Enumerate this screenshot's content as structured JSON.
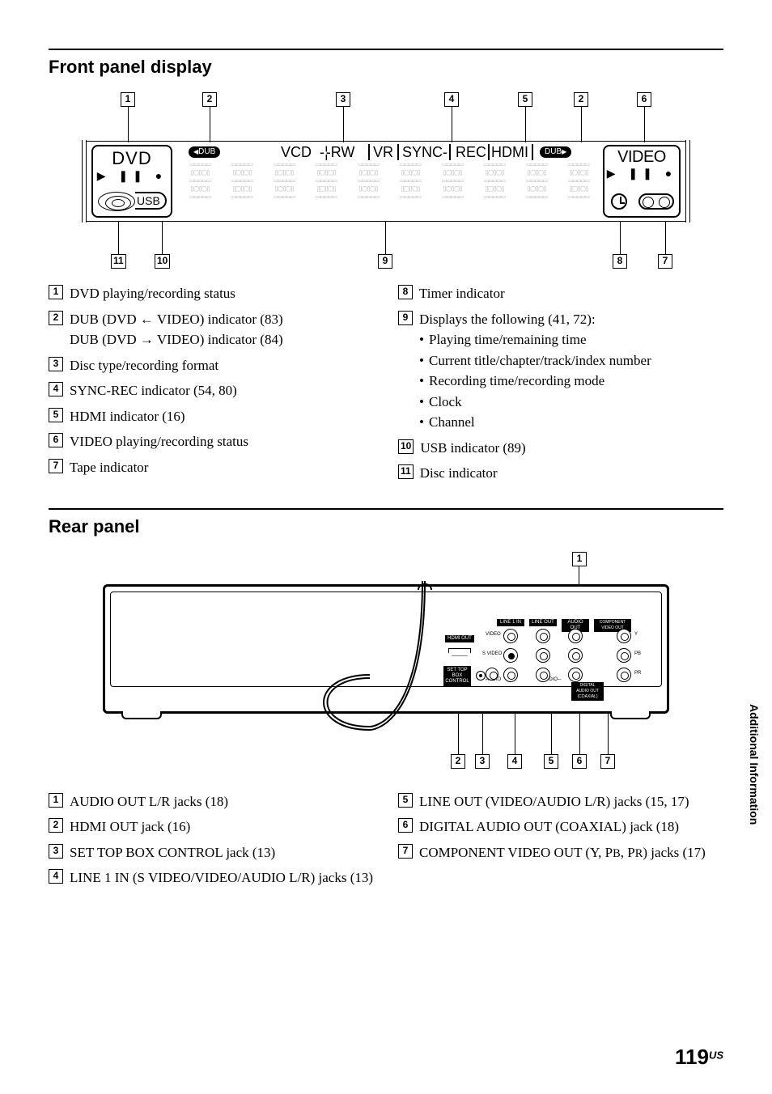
{
  "section1": {
    "title": "Front panel display"
  },
  "section2": {
    "title": "Rear panel"
  },
  "sideTab": "Additional Information",
  "pageNumber": "119",
  "pageSuffix": "US",
  "frontDisplay": {
    "leftBox": {
      "top": "DVD",
      "usb": "USB"
    },
    "topRow": {
      "vcd": "VCD",
      "rw": "RW",
      "vr": "VR",
      "sync": "SYNC-",
      "rec": "REC",
      "hdmi": "HDMI"
    },
    "dub": "DUB",
    "rightBox": {
      "top": "VIDEO"
    }
  },
  "frontCallouts": {
    "top": [
      "1",
      "2",
      "3",
      "4",
      "5",
      "2",
      "6"
    ],
    "bot": [
      "11",
      "10",
      "9",
      "8",
      "7"
    ]
  },
  "frontLegend": {
    "left": [
      {
        "n": "1",
        "t": "DVD playing/recording status"
      },
      {
        "n": "2",
        "t": "DUB (DVD ← VIDEO) indicator (83)",
        "t2": "DUB (DVD → VIDEO) indicator (84)"
      },
      {
        "n": "3",
        "t": "Disc type/recording format"
      },
      {
        "n": "4",
        "t": "SYNC-REC indicator (54, 80)"
      },
      {
        "n": "5",
        "t": "HDMI indicator (16)"
      },
      {
        "n": "6",
        "t": "VIDEO playing/recording status"
      },
      {
        "n": "7",
        "t": "Tape indicator"
      }
    ],
    "right": [
      {
        "n": "8",
        "t": "Timer indicator"
      },
      {
        "n": "9",
        "t": "Displays the following (41, 72):",
        "sub": [
          "Playing time/remaining time",
          "Current title/chapter/track/index number",
          "Recording time/recording mode",
          "Clock",
          "Channel"
        ]
      },
      {
        "n": "10",
        "t": "USB indicator (89)"
      },
      {
        "n": "11",
        "t": "Disc indicator"
      }
    ]
  },
  "rearCallouts": {
    "top": [
      "1"
    ],
    "bot": [
      "2",
      "3",
      "4",
      "5",
      "6",
      "7"
    ]
  },
  "rearLabels": {
    "hdmi": "HDMI OUT",
    "stb": "SET TOP BOX CONTROL",
    "line1": "LINE 1 IN",
    "lineout": "LINE OUT",
    "audioout": "AUDIO OUT",
    "component": "COMPONENT VIDEO OUT",
    "video": "VIDEO",
    "svideo": "S VIDEO",
    "audio": "AUDIO",
    "coax": "DIGITAL AUDIO OUT",
    "y": "Y",
    "pb": "PB",
    "pr": "PR",
    "l": "L",
    "r": "R"
  },
  "rearLegend": {
    "left": [
      {
        "n": "1",
        "t": "AUDIO OUT L/R jacks (18)"
      },
      {
        "n": "2",
        "t": "HDMI OUT jack (16)"
      },
      {
        "n": "3",
        "t": "SET TOP BOX CONTROL jack (13)"
      },
      {
        "n": "4",
        "t": "LINE 1 IN (S VIDEO/VIDEO/AUDIO L/R) jacks (13)"
      }
    ],
    "right": [
      {
        "n": "5",
        "t": "LINE OUT (VIDEO/AUDIO L/R) jacks (15, 17)"
      },
      {
        "n": "6",
        "t": "DIGITAL AUDIO OUT (COAXIAL) jack (18)"
      },
      {
        "n": "7",
        "tHtml": true
      }
    ]
  }
}
